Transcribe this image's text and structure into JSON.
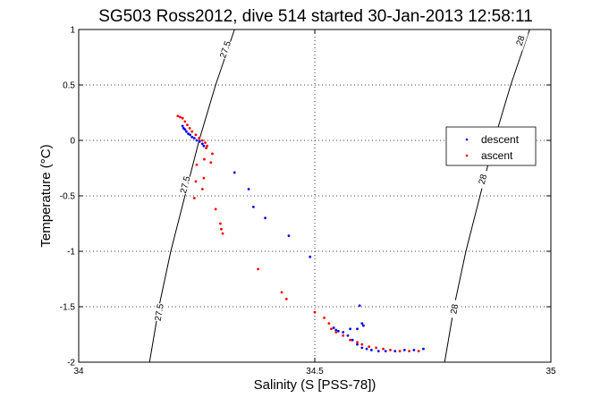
{
  "chart_data": {
    "type": "scatter",
    "title": "SG503 Ross2012, dive 514 started 30-Jan-2013 12:58:11",
    "xlabel": "Salinity (S [PSS-78])",
    "ylabel": "Temperature (°C)",
    "xlim": [
      34,
      35
    ],
    "ylim": [
      -2,
      1
    ],
    "xticks": [
      34,
      34.5,
      35
    ],
    "yticks": [
      -2,
      -1.5,
      -1,
      -0.5,
      0,
      0.5,
      1
    ],
    "xtick_labels": [
      "34",
      "34.5",
      "35"
    ],
    "ytick_labels": [
      "-2",
      "-1.5",
      "-1",
      "-0.5",
      "0",
      "0.5",
      "1"
    ],
    "grid": true,
    "legend": {
      "placement": "right",
      "entries": [
        "descent",
        "ascent"
      ]
    },
    "colors": {
      "descent": "#0000ff",
      "ascent": "#ff0000",
      "contour": "#000000"
    },
    "contours": [
      {
        "label": "27.5",
        "points": [
          [
            34.15,
            -2.0
          ],
          [
            34.17,
            -1.5
          ],
          [
            34.195,
            -1.0
          ],
          [
            34.225,
            -0.5
          ],
          [
            34.255,
            0.0
          ],
          [
            34.29,
            0.5
          ],
          [
            34.33,
            1.0
          ]
        ],
        "label_positions": [
          [
            34.17,
            -1.55
          ],
          [
            34.225,
            -0.4
          ],
          [
            34.31,
            0.82
          ]
        ]
      },
      {
        "label": "28",
        "points": [
          [
            34.775,
            -2.0
          ],
          [
            34.795,
            -1.5
          ],
          [
            34.82,
            -1.0
          ],
          [
            34.85,
            -0.5
          ],
          [
            34.88,
            0.0
          ],
          [
            34.915,
            0.5
          ],
          [
            34.955,
            1.0
          ]
        ],
        "label_positions": [
          [
            34.795,
            -1.52
          ],
          [
            34.855,
            -0.35
          ],
          [
            34.935,
            0.9
          ]
        ]
      }
    ],
    "series": [
      {
        "name": "descent",
        "points": [
          [
            34.22,
            0.13
          ],
          [
            34.222,
            0.11
          ],
          [
            34.225,
            0.1
          ],
          [
            34.228,
            0.08
          ],
          [
            34.232,
            0.06
          ],
          [
            34.236,
            0.05
          ],
          [
            34.24,
            0.03
          ],
          [
            34.245,
            0.02
          ],
          [
            34.25,
            0.0
          ],
          [
            34.256,
            -0.01
          ],
          [
            34.262,
            -0.03
          ],
          [
            34.265,
            -0.05
          ],
          [
            34.33,
            -0.29
          ],
          [
            34.36,
            -0.44
          ],
          [
            34.37,
            -0.6
          ],
          [
            34.395,
            -0.7
          ],
          [
            34.445,
            -0.86
          ],
          [
            34.49,
            -1.05
          ],
          [
            34.54,
            -1.69
          ],
          [
            34.545,
            -1.71
          ],
          [
            34.55,
            -1.72
          ],
          [
            34.56,
            -1.73
          ],
          [
            34.57,
            -1.76
          ],
          [
            34.58,
            -1.8
          ],
          [
            34.59,
            -1.84
          ],
          [
            34.6,
            -1.87
          ],
          [
            34.61,
            -1.88
          ],
          [
            34.62,
            -1.89
          ],
          [
            34.635,
            -1.9
          ],
          [
            34.65,
            -1.9
          ],
          [
            34.67,
            -1.9
          ],
          [
            34.69,
            -1.89
          ],
          [
            34.71,
            -1.89
          ],
          [
            34.73,
            -1.88
          ],
          [
            34.595,
            -1.49
          ],
          [
            34.6,
            -1.65
          ],
          [
            34.603,
            -1.67
          ],
          [
            34.59,
            -1.7
          ],
          [
            34.575,
            -1.7
          ]
        ]
      },
      {
        "name": "ascent",
        "points": [
          [
            34.21,
            0.22
          ],
          [
            34.215,
            0.21
          ],
          [
            34.22,
            0.2
          ],
          [
            34.225,
            0.17
          ],
          [
            34.23,
            0.14
          ],
          [
            34.235,
            0.11
          ],
          [
            34.24,
            0.08
          ],
          [
            34.248,
            0.05
          ],
          [
            34.255,
            0.02
          ],
          [
            34.262,
            0.0
          ],
          [
            34.268,
            -0.02
          ],
          [
            34.272,
            -0.05
          ],
          [
            34.27,
            -0.07
          ],
          [
            34.283,
            -0.12
          ],
          [
            34.266,
            -0.17
          ],
          [
            34.28,
            -0.2
          ],
          [
            34.25,
            -0.22
          ],
          [
            34.265,
            -0.34
          ],
          [
            34.248,
            -0.37
          ],
          [
            34.262,
            -0.44
          ],
          [
            34.245,
            -0.52
          ],
          [
            34.29,
            -0.62
          ],
          [
            34.3,
            -0.75
          ],
          [
            34.302,
            -0.8
          ],
          [
            34.305,
            -0.84
          ],
          [
            34.38,
            -1.16
          ],
          [
            34.43,
            -1.37
          ],
          [
            34.44,
            -1.43
          ],
          [
            34.5,
            -1.55
          ],
          [
            34.52,
            -1.6
          ],
          [
            34.53,
            -1.65
          ],
          [
            34.535,
            -1.7
          ],
          [
            34.545,
            -1.73
          ],
          [
            34.56,
            -1.76
          ],
          [
            34.575,
            -1.8
          ],
          [
            34.59,
            -1.82
          ],
          [
            34.6,
            -1.84
          ],
          [
            34.615,
            -1.86
          ],
          [
            34.63,
            -1.87
          ],
          [
            34.645,
            -1.88
          ],
          [
            34.66,
            -1.89
          ],
          [
            34.68,
            -1.9
          ],
          [
            34.7,
            -1.9
          ],
          [
            34.72,
            -1.9
          ]
        ]
      }
    ]
  }
}
